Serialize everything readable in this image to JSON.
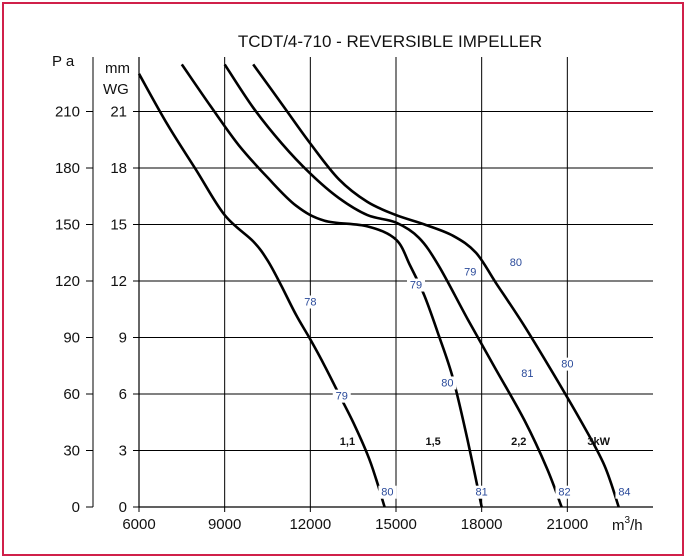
{
  "colors": {
    "frame": "#d0204a",
    "curve": "#000000",
    "noise_label": "#2a4a9a",
    "grid": "#000000"
  },
  "chart_data": {
    "type": "line",
    "title": "TCDT/4-710  - REVERSIBLE IMPELLER",
    "xlabel": "m³/h",
    "ylabel_left": "P a",
    "ylabel_right_line1": "mm",
    "ylabel_right_line2": "WG",
    "xlim": [
      6000,
      24000
    ],
    "ylim": [
      0,
      240
    ],
    "x_ticks": [
      6000,
      9000,
      12000,
      15000,
      18000,
      21000
    ],
    "x_tick_labels": [
      "6000",
      "9000",
      "12000",
      "15000",
      "18000",
      "21000"
    ],
    "y_ticks_pa": [
      0,
      30,
      60,
      90,
      120,
      150,
      180,
      210
    ],
    "y_tick_labels_pa": [
      "0",
      "30",
      "60",
      "90",
      "120",
      "150",
      "180",
      "210"
    ],
    "y_ticks_mmwg_pa": [
      0,
      30,
      60,
      90,
      120,
      150,
      180,
      210
    ],
    "y_tick_labels_mmwg": [
      "0",
      "3",
      "6",
      "9",
      "12",
      "15",
      "18",
      "21"
    ],
    "grid": true,
    "series": [
      {
        "name": "1,1",
        "points": [
          [
            6000,
            230
          ],
          [
            7000,
            203
          ],
          [
            8000,
            179
          ],
          [
            9000,
            155
          ],
          [
            10000,
            141
          ],
          [
            10500,
            131
          ],
          [
            11000,
            117
          ],
          [
            11500,
            102
          ],
          [
            12000,
            89
          ],
          [
            12500,
            75
          ],
          [
            13000,
            60
          ],
          [
            13500,
            45
          ],
          [
            14000,
            28
          ],
          [
            14300,
            15
          ],
          [
            14600,
            0
          ]
        ]
      },
      {
        "name": "1,5",
        "points": [
          [
            7500,
            235
          ],
          [
            8500,
            213
          ],
          [
            9500,
            192
          ],
          [
            10500,
            175
          ],
          [
            11500,
            160
          ],
          [
            12500,
            152
          ],
          [
            14000,
            149
          ],
          [
            15000,
            142
          ],
          [
            15500,
            128
          ],
          [
            16000,
            112
          ],
          [
            16500,
            91
          ],
          [
            17000,
            68
          ],
          [
            17500,
            36
          ],
          [
            18000,
            0
          ]
        ]
      },
      {
        "name": "2,2",
        "points": [
          [
            9000,
            235
          ],
          [
            10000,
            212
          ],
          [
            11000,
            193
          ],
          [
            12000,
            177
          ],
          [
            13000,
            164
          ],
          [
            14000,
            155
          ],
          [
            15000,
            151
          ],
          [
            15800,
            143
          ],
          [
            16500,
            128
          ],
          [
            17500,
            100
          ],
          [
            18500,
            73
          ],
          [
            19500,
            46
          ],
          [
            20300,
            20
          ],
          [
            20800,
            0
          ]
        ]
      },
      {
        "name": "3kW",
        "points": [
          [
            10000,
            235
          ],
          [
            11000,
            214
          ],
          [
            12000,
            193
          ],
          [
            13000,
            174
          ],
          [
            14000,
            162
          ],
          [
            15000,
            155
          ],
          [
            16000,
            150
          ],
          [
            17000,
            144
          ],
          [
            17800,
            135
          ],
          [
            18500,
            119
          ],
          [
            19500,
            96
          ],
          [
            20500,
            71
          ],
          [
            21500,
            45
          ],
          [
            22300,
            22
          ],
          [
            22800,
            0
          ]
        ]
      }
    ],
    "noise_labels": [
      {
        "text": "78",
        "x": 12000,
        "y": 107
      },
      {
        "text": "79",
        "x": 13100,
        "y": 57
      },
      {
        "text": "80",
        "x": 14700,
        "y": 6
      },
      {
        "text": "79",
        "x": 15700,
        "y": 116
      },
      {
        "text": "80",
        "x": 16800,
        "y": 64
      },
      {
        "text": "81",
        "x": 18000,
        "y": 6
      },
      {
        "text": "79",
        "x": 17600,
        "y": 123
      },
      {
        "text": "81",
        "x": 19600,
        "y": 69
      },
      {
        "text": "82",
        "x": 20900,
        "y": 6
      },
      {
        "text": "80",
        "x": 19200,
        "y": 128
      },
      {
        "text": "80",
        "x": 21000,
        "y": 74
      },
      {
        "text": "84",
        "x": 23000,
        "y": 6
      }
    ],
    "curve_labels": [
      {
        "text": "1,1",
        "x": 13300,
        "y": 33
      },
      {
        "text": "1,5",
        "x": 16300,
        "y": 33
      },
      {
        "text": "2,2",
        "x": 19300,
        "y": 33
      },
      {
        "text": "3kW",
        "x": 22100,
        "y": 33
      }
    ]
  }
}
